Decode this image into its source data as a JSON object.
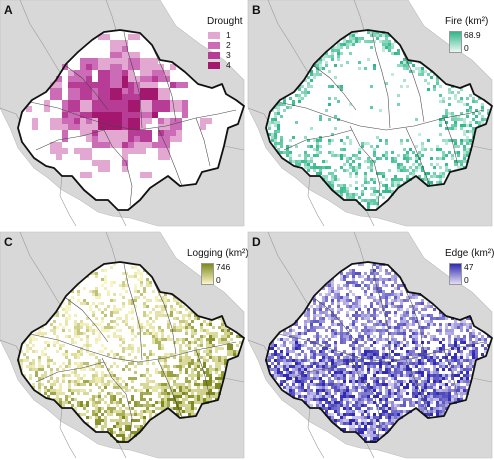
{
  "panels": [
    {
      "letter": "A",
      "legend_title": "Drought",
      "legend_type": "categorical",
      "categories": [
        "1",
        "2",
        "3",
        "4"
      ],
      "colors": [
        "#e3a8d2",
        "#cc6cb6",
        "#b63c96",
        "#a3176f"
      ],
      "pattern": "blocks"
    },
    {
      "letter": "B",
      "legend_title": "Fire (km²)",
      "legend_type": "continuous",
      "max_label": "68.9",
      "min_label": "0",
      "color_min": "#e9f8f1",
      "color_max": "#2fb78a",
      "pattern": "edges"
    },
    {
      "letter": "C",
      "legend_title": "Logging (km²)",
      "legend_type": "continuous",
      "max_label": "746",
      "min_label": "0",
      "color_min": "#fbf6c8",
      "color_max": "#7e8a1e",
      "pattern": "southeast"
    },
    {
      "letter": "D",
      "legend_title": "Edge (km²)",
      "legend_type": "continuous",
      "max_label": "47",
      "min_label": "0",
      "color_min": "#e4ddf5",
      "color_max": "#2f2ab1",
      "pattern": "dense"
    }
  ],
  "colors": {
    "land": "#d8d8d8",
    "ocean": "#ffffff",
    "border": "#111111"
  }
}
